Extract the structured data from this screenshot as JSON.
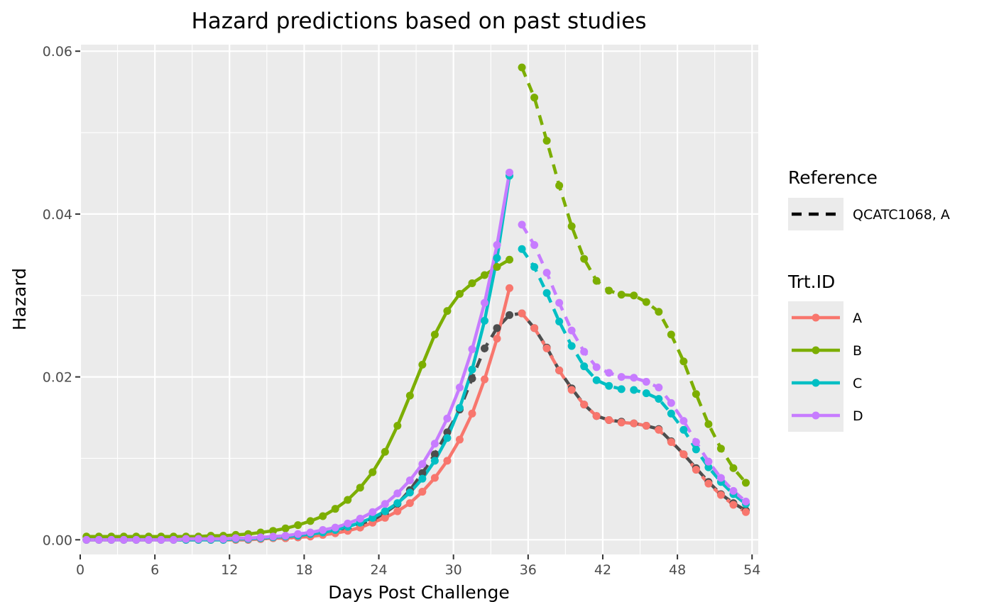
{
  "chart_data": {
    "type": "line",
    "title": "Hazard predictions based on past studies",
    "xlabel": "Days Post Challenge",
    "ylabel": "Hazard",
    "xlim": [
      0,
      54.5
    ],
    "ylim": [
      -0.0018,
      0.0608
    ],
    "x_ticks": [
      0,
      6,
      12,
      18,
      24,
      30,
      36,
      42,
      48,
      54
    ],
    "y_ticks": [
      0.0,
      0.02,
      0.04,
      0.06
    ],
    "x_tick_labels": [
      "0",
      "6",
      "12",
      "18",
      "24",
      "30",
      "36",
      "42",
      "48",
      "54"
    ],
    "y_tick_labels": [
      "0.00",
      "0.02",
      "0.04",
      "0.06"
    ],
    "grid": true,
    "legend_position": "right",
    "legends": [
      {
        "title": "Reference",
        "entries": [
          {
            "label": "QCATC1068, A",
            "linetype": "dashed",
            "color": "#000000"
          }
        ]
      },
      {
        "title": "Trt.ID",
        "entries": [
          {
            "label": "A",
            "color": "#F8766D"
          },
          {
            "label": "B",
            "color": "#7CAE00"
          },
          {
            "label": "C",
            "color": "#00BFC4"
          },
          {
            "label": "D",
            "color": "#C77CFF"
          }
        ]
      }
    ],
    "series": [
      {
        "name": "QCATC1068, A",
        "color": "#4d4d4d",
        "linetype": "dashed",
        "x": [
          0.5,
          1.5,
          2.5,
          3.5,
          4.5,
          5.5,
          6.5,
          7.5,
          8.5,
          9.5,
          10.5,
          11.5,
          12.5,
          13.5,
          14.5,
          15.5,
          16.5,
          17.5,
          18.5,
          19.5,
          20.5,
          21.5,
          22.5,
          23.5,
          24.5,
          25.5,
          26.5,
          27.5,
          28.5,
          29.5,
          30.5,
          31.5,
          32.5,
          33.5,
          34.5,
          35.5,
          36.5,
          37.5,
          38.5,
          39.5,
          40.5,
          41.5,
          42.5,
          43.5,
          44.5,
          45.5,
          46.5,
          47.5,
          48.5,
          49.5,
          50.5,
          51.5,
          52.5,
          53.5
        ],
        "y": [
          0.0,
          0.0,
          0.0,
          0.0,
          0.0,
          0.0,
          0.0,
          0.0,
          0.0,
          0.0,
          0.0,
          0.0,
          0.0,
          0.0,
          0.0001,
          0.0002,
          0.0002,
          0.0003,
          0.0005,
          0.0007,
          0.0009,
          0.0013,
          0.0018,
          0.0024,
          0.0033,
          0.0044,
          0.0061,
          0.0082,
          0.0105,
          0.0132,
          0.016,
          0.0198,
          0.0235,
          0.026,
          0.0276,
          0.0278,
          0.026,
          0.0236,
          0.0208,
          0.0186,
          0.0166,
          0.0152,
          0.0147,
          0.0145,
          0.0143,
          0.014,
          0.0136,
          0.0121,
          0.0105,
          0.0088,
          0.0071,
          0.0056,
          0.0045,
          0.0036
        ]
      },
      {
        "name": "A",
        "color": "#F8766D",
        "linetype": "solid",
        "x": [
          0.5,
          1.5,
          2.5,
          3.5,
          4.5,
          5.5,
          6.5,
          7.5,
          8.5,
          9.5,
          10.5,
          11.5,
          12.5,
          13.5,
          14.5,
          15.5,
          16.5,
          17.5,
          18.5,
          19.5,
          20.5,
          21.5,
          22.5,
          23.5,
          24.5,
          25.5,
          26.5,
          27.5,
          28.5,
          29.5,
          30.5,
          31.5,
          32.5,
          33.5,
          34.5
        ],
        "y": [
          0.0,
          0.0,
          0.0,
          0.0,
          0.0,
          0.0,
          0.0,
          0.0,
          0.0,
          0.0,
          0.0,
          0.0,
          0.0,
          0.0,
          0.0001,
          0.0002,
          0.0002,
          0.0003,
          0.0004,
          0.0006,
          0.0008,
          0.0011,
          0.0015,
          0.0021,
          0.0027,
          0.0035,
          0.0045,
          0.0059,
          0.0076,
          0.0097,
          0.0123,
          0.0155,
          0.0197,
          0.0247,
          0.0309
        ]
      },
      {
        "name": "A",
        "color": "#F8766D",
        "linetype": "dashed",
        "x": [
          35.5,
          36.5,
          37.5,
          38.5,
          39.5,
          40.5,
          41.5,
          42.5,
          43.5,
          44.5,
          45.5,
          46.5,
          47.5,
          48.5,
          49.5,
          50.5,
          51.5,
          52.5,
          53.5
        ],
        "y": [
          0.0278,
          0.026,
          0.0235,
          0.0208,
          0.0184,
          0.0166,
          0.0152,
          0.0147,
          0.0144,
          0.0143,
          0.014,
          0.0135,
          0.012,
          0.0105,
          0.0086,
          0.0069,
          0.0055,
          0.0043,
          0.0034
        ]
      },
      {
        "name": "B",
        "color": "#7CAE00",
        "linetype": "solid",
        "x": [
          0.5,
          1.5,
          2.5,
          3.5,
          4.5,
          5.5,
          6.5,
          7.5,
          8.5,
          9.5,
          10.5,
          11.5,
          12.5,
          13.5,
          14.5,
          15.5,
          16.5,
          17.5,
          18.5,
          19.5,
          20.5,
          21.5,
          22.5,
          23.5,
          24.5,
          25.5,
          26.5,
          27.5,
          28.5,
          29.5,
          30.5,
          31.5,
          32.5,
          33.5,
          34.5
        ],
        "y": [
          0.0004,
          0.0004,
          0.0004,
          0.0004,
          0.0004,
          0.0004,
          0.0004,
          0.0004,
          0.0004,
          0.0004,
          0.0005,
          0.0005,
          0.0006,
          0.0007,
          0.0009,
          0.0011,
          0.0014,
          0.0018,
          0.0023,
          0.0029,
          0.0038,
          0.0049,
          0.0064,
          0.0083,
          0.0108,
          0.014,
          0.0177,
          0.0215,
          0.0252,
          0.0281,
          0.0302,
          0.0315,
          0.0325,
          0.0335,
          0.0344
        ]
      },
      {
        "name": "B",
        "color": "#7CAE00",
        "linetype": "dashed",
        "x": [
          35.5,
          36.5,
          37.5,
          38.5,
          39.5,
          40.5,
          41.5,
          42.5,
          43.5,
          44.5,
          45.5,
          46.5,
          47.5,
          48.5,
          49.5,
          50.5,
          51.5,
          52.5,
          53.5
        ],
        "y": [
          0.058,
          0.0543,
          0.049,
          0.0435,
          0.0385,
          0.0345,
          0.0318,
          0.0306,
          0.0301,
          0.03,
          0.0292,
          0.028,
          0.0252,
          0.0219,
          0.0179,
          0.0142,
          0.0112,
          0.0088,
          0.007
        ]
      },
      {
        "name": "C",
        "color": "#00BFC4",
        "linetype": "solid",
        "x": [
          0.5,
          1.5,
          2.5,
          3.5,
          4.5,
          5.5,
          6.5,
          7.5,
          8.5,
          9.5,
          10.5,
          11.5,
          12.5,
          13.5,
          14.5,
          15.5,
          16.5,
          17.5,
          18.5,
          19.5,
          20.5,
          21.5,
          22.5,
          23.5,
          24.5,
          25.5,
          26.5,
          27.5,
          28.5,
          29.5,
          30.5,
          31.5,
          32.5,
          33.5,
          34.5
        ],
        "y": [
          0.0,
          0.0,
          0.0,
          0.0,
          0.0,
          0.0,
          0.0,
          0.0,
          0.0,
          0.0,
          0.0,
          0.0,
          0.0001,
          0.0001,
          0.0002,
          0.0003,
          0.0004,
          0.0005,
          0.0007,
          0.0009,
          0.0012,
          0.0016,
          0.0021,
          0.0027,
          0.0035,
          0.0045,
          0.0058,
          0.0075,
          0.0097,
          0.0125,
          0.0162,
          0.0209,
          0.0269,
          0.0346,
          0.0447
        ]
      },
      {
        "name": "C",
        "color": "#00BFC4",
        "linetype": "dashed",
        "x": [
          35.5,
          36.5,
          37.5,
          38.5,
          39.5,
          40.5,
          41.5,
          42.5,
          43.5,
          44.5,
          45.5,
          46.5,
          47.5,
          48.5,
          49.5,
          50.5,
          51.5,
          52.5,
          53.5
        ],
        "y": [
          0.0357,
          0.0335,
          0.0303,
          0.0268,
          0.0238,
          0.0213,
          0.0196,
          0.0189,
          0.0185,
          0.0184,
          0.018,
          0.0173,
          0.0155,
          0.0135,
          0.0111,
          0.0089,
          0.0071,
          0.0056,
          0.0044
        ]
      },
      {
        "name": "D",
        "color": "#C77CFF",
        "linetype": "solid",
        "x": [
          0.5,
          1.5,
          2.5,
          3.5,
          4.5,
          5.5,
          6.5,
          7.5,
          8.5,
          9.5,
          10.5,
          11.5,
          12.5,
          13.5,
          14.5,
          15.5,
          16.5,
          17.5,
          18.5,
          19.5,
          20.5,
          21.5,
          22.5,
          23.5,
          24.5,
          25.5,
          26.5,
          27.5,
          28.5,
          29.5,
          30.5,
          31.5,
          32.5,
          33.5,
          34.5
        ],
        "y": [
          0.0,
          0.0,
          0.0,
          0.0,
          0.0,
          0.0,
          0.0,
          0.0,
          0.0001,
          0.0001,
          0.0001,
          0.0001,
          0.0002,
          0.0002,
          0.0003,
          0.0004,
          0.0005,
          0.0007,
          0.0009,
          0.0012,
          0.0015,
          0.002,
          0.0026,
          0.0034,
          0.0044,
          0.0057,
          0.0073,
          0.0093,
          0.0118,
          0.0149,
          0.0187,
          0.0234,
          0.0291,
          0.0362,
          0.0451
        ]
      },
      {
        "name": "D",
        "color": "#C77CFF",
        "linetype": "dashed",
        "x": [
          35.5,
          36.5,
          37.5,
          38.5,
          39.5,
          40.5,
          41.5,
          42.5,
          43.5,
          44.5,
          45.5,
          46.5,
          47.5,
          48.5,
          49.5,
          50.5,
          51.5,
          52.5,
          53.5
        ],
        "y": [
          0.0387,
          0.0362,
          0.0328,
          0.0291,
          0.0257,
          0.0231,
          0.0212,
          0.0205,
          0.02,
          0.0199,
          0.0194,
          0.0187,
          0.0168,
          0.0146,
          0.012,
          0.0096,
          0.0076,
          0.006,
          0.0047
        ]
      }
    ]
  }
}
